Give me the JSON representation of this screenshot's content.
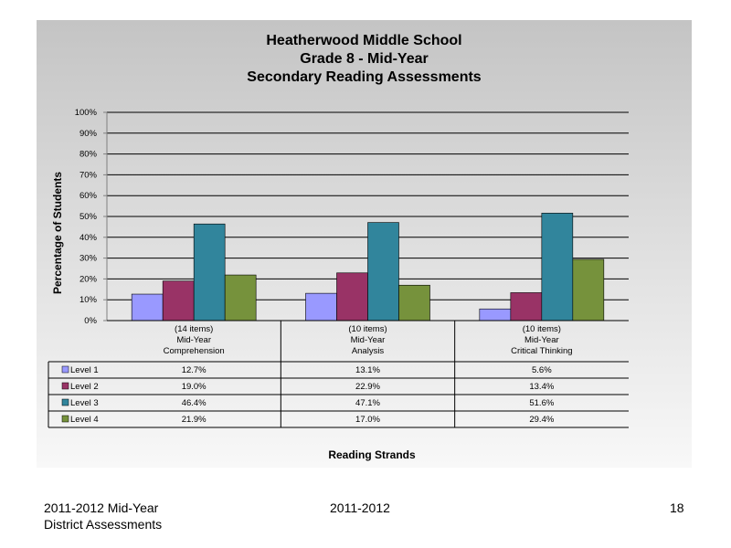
{
  "chart_data": {
    "type": "bar",
    "title_lines": [
      "Heatherwood Middle School",
      "Grade 8 - Mid-Year",
      "Secondary Reading Assessments"
    ],
    "ylabel": "Percentage of Students",
    "xlabel": "Reading Strands",
    "ylim": [
      0,
      100
    ],
    "yticks": [
      "0%",
      "10%",
      "20%",
      "30%",
      "40%",
      "50%",
      "60%",
      "70%",
      "80%",
      "90%",
      "100%"
    ],
    "grid": true,
    "legend": "data-table",
    "categories": [
      [
        "(14 items)",
        "Mid-Year",
        "Comprehension"
      ],
      [
        "(10 items)",
        "Mid-Year",
        "Analysis"
      ],
      [
        "(10 items)",
        "Mid-Year",
        "Critical Thinking"
      ]
    ],
    "series": [
      {
        "name": "Level 1",
        "color": "#9999ff",
        "values": [
          12.7,
          13.1,
          5.6
        ],
        "labels": [
          "12.7%",
          "13.1%",
          "5.6%"
        ]
      },
      {
        "name": "Level 2",
        "color": "#993366",
        "values": [
          19.0,
          22.9,
          13.4
        ],
        "labels": [
          "19.0%",
          "22.9%",
          "13.4%"
        ]
      },
      {
        "name": "Level 3",
        "color": "#31859c",
        "values": [
          46.4,
          47.1,
          51.6
        ],
        "labels": [
          "46.4%",
          "47.1%",
          "51.6%"
        ]
      },
      {
        "name": "Level 4",
        "color": "#76923c",
        "values": [
          21.9,
          17.0,
          29.4
        ],
        "labels": [
          "21.9%",
          "17.0%",
          "29.4%"
        ]
      }
    ]
  },
  "footer": {
    "left_line1": "2011-2012  Mid-Year",
    "left_line2": "District Assessments",
    "center": "2011-2012",
    "page_number": "18"
  }
}
